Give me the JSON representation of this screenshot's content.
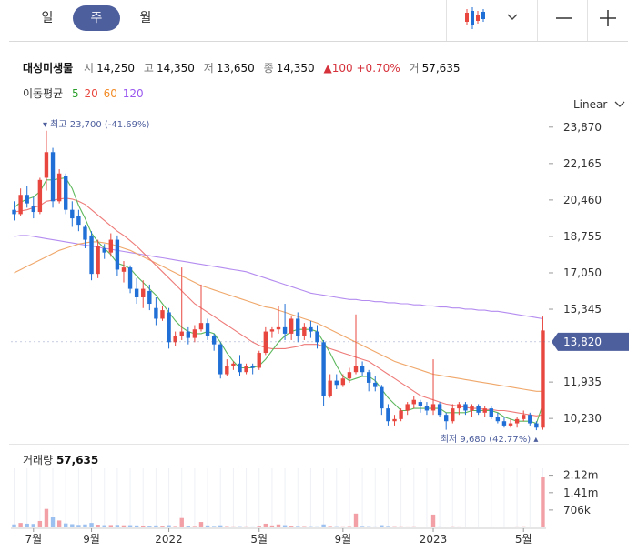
{
  "tabs": {
    "day": "일",
    "week": "주",
    "month": "월"
  },
  "icons": {
    "chart_type": "candlestick-icon",
    "dropdown": "chevron-down-icon",
    "zoom_out": "minus-icon",
    "zoom_in": "plus-icon"
  },
  "stock": {
    "name": "대성미생물",
    "open_label": "시",
    "open": "14,250",
    "high_label": "고",
    "high": "14,350",
    "low_label": "저",
    "low": "13,650",
    "close_label": "종",
    "close": "14,350",
    "change": "▲100",
    "change_pct": "+0.70%",
    "volume_label": "거",
    "volume": "57,635"
  },
  "moving_avg": {
    "label": "이동평균",
    "periods": [
      "5",
      "20",
      "60",
      "120"
    ],
    "colors": [
      "#2ca02c",
      "#e8473f",
      "#f28c28",
      "#9b59f0"
    ]
  },
  "scale_label": "Linear",
  "colors": {
    "up": "#e8473f",
    "down": "#1f6fd6",
    "accent": "#4e5f9e",
    "ma5": "#5cb85c",
    "ma20": "#ee7a78",
    "ma60": "#f0a76a",
    "ma120": "#b48cf0",
    "vol_up": "#f2a0a6",
    "vol_down": "#9cc0ef"
  },
  "chart_data": {
    "type": "candlestick",
    "y_ticks": [
      "23,870",
      "22,165",
      "20,460",
      "18,755",
      "17,050",
      "15,345",
      "11,935",
      "10,230"
    ],
    "y_range": [
      9300,
      24500
    ],
    "x_labels": [
      "7월",
      "9월",
      "2022",
      "5월",
      "9월",
      "2023",
      "5월"
    ],
    "current_price": "13,820",
    "high_marker": "최고 23,700 (-41.69%)",
    "low_marker": "최저 9,680 (42.77%)",
    "volume_label": "거래량",
    "volume_value": "57,635",
    "volume_ticks": [
      "2.12m",
      "1.41m",
      "706k"
    ],
    "volume_range": [
      0,
      2400000
    ],
    "candles": [
      [
        20000,
        20400,
        19500,
        19800
      ],
      [
        19800,
        21000,
        19700,
        20700
      ],
      [
        20700,
        21100,
        20100,
        20300
      ],
      [
        20200,
        20600,
        19600,
        19900
      ],
      [
        19900,
        21500,
        19800,
        21400
      ],
      [
        21500,
        23700,
        20900,
        22700
      ],
      [
        22700,
        22900,
        20100,
        20400
      ],
      [
        20400,
        21900,
        20300,
        21700
      ],
      [
        21600,
        21700,
        19800,
        20000
      ],
      [
        20000,
        20400,
        19200,
        19600
      ],
      [
        19700,
        20000,
        19000,
        19300
      ],
      [
        19200,
        19300,
        18200,
        18600
      ],
      [
        18800,
        19000,
        16700,
        17000
      ],
      [
        17000,
        18600,
        16800,
        18300
      ],
      [
        18200,
        18400,
        17700,
        18000
      ],
      [
        18000,
        18900,
        17800,
        18600
      ],
      [
        18600,
        18800,
        16900,
        17200
      ],
      [
        17100,
        17600,
        16600,
        17300
      ],
      [
        17300,
        17400,
        16100,
        16300
      ],
      [
        16300,
        16800,
        15600,
        15900
      ],
      [
        15900,
        16700,
        15400,
        16300
      ],
      [
        16200,
        16500,
        15300,
        15600
      ],
      [
        15400,
        15900,
        14600,
        14900
      ],
      [
        14900,
        15500,
        14800,
        15300
      ],
      [
        15200,
        15400,
        13500,
        13800
      ],
      [
        13800,
        14300,
        13600,
        14100
      ],
      [
        14100,
        17300,
        13900,
        14300
      ],
      [
        14300,
        14500,
        13700,
        14000
      ],
      [
        14000,
        14600,
        13800,
        14400
      ],
      [
        14400,
        16500,
        14300,
        14700
      ],
      [
        14700,
        14900,
        13900,
        14100
      ],
      [
        14100,
        14200,
        13400,
        13700
      ],
      [
        13700,
        13800,
        12100,
        12300
      ],
      [
        12300,
        13000,
        12200,
        12700
      ],
      [
        12700,
        12900,
        12500,
        12800
      ],
      [
        12800,
        13200,
        12200,
        12400
      ],
      [
        12400,
        12800,
        12300,
        12700
      ],
      [
        12700,
        12800,
        12300,
        12600
      ],
      [
        12600,
        13400,
        12500,
        13300
      ],
      [
        13300,
        14500,
        13200,
        14300
      ],
      [
        14300,
        14500,
        14000,
        14400
      ],
      [
        14400,
        15500,
        14200,
        14500
      ],
      [
        14500,
        15600,
        13900,
        14200
      ],
      [
        14200,
        15000,
        13900,
        14900
      ],
      [
        14900,
        15200,
        13800,
        14100
      ],
      [
        14100,
        14700,
        13900,
        14500
      ],
      [
        14500,
        14800,
        14000,
        14300
      ],
      [
        14300,
        14600,
        13500,
        13800
      ],
      [
        13800,
        13900,
        10800,
        11300
      ],
      [
        11300,
        12300,
        11200,
        12000
      ],
      [
        12000,
        12300,
        11600,
        11800
      ],
      [
        11800,
        12300,
        11700,
        12100
      ],
      [
        12100,
        12600,
        11900,
        12400
      ],
      [
        12400,
        15100,
        12300,
        12700
      ],
      [
        12700,
        12900,
        12200,
        12400
      ],
      [
        12400,
        12500,
        11500,
        11900
      ],
      [
        11900,
        12200,
        11500,
        11700
      ],
      [
        11700,
        11800,
        10400,
        10700
      ],
      [
        10700,
        10900,
        9900,
        10100
      ],
      [
        10100,
        10400,
        9900,
        10200
      ],
      [
        10200,
        10700,
        10100,
        10600
      ],
      [
        10600,
        11000,
        10400,
        10900
      ],
      [
        10900,
        11300,
        10700,
        11100
      ],
      [
        11000,
        11100,
        10500,
        10800
      ],
      [
        10800,
        11000,
        10400,
        10600
      ],
      [
        10600,
        13000,
        10400,
        10900
      ],
      [
        10900,
        11000,
        10300,
        10400
      ],
      [
        10400,
        10500,
        9700,
        10100
      ],
      [
        10100,
        10900,
        10000,
        10700
      ],
      [
        10700,
        11000,
        10400,
        10900
      ],
      [
        10900,
        11000,
        10400,
        10600
      ],
      [
        10600,
        10900,
        10300,
        10800
      ],
      [
        10800,
        10900,
        10400,
        10500
      ],
      [
        10500,
        10800,
        10300,
        10700
      ],
      [
        10700,
        10800,
        10200,
        10300
      ],
      [
        10300,
        10500,
        10000,
        10100
      ],
      [
        10100,
        10300,
        9800,
        9900
      ],
      [
        9900,
        10200,
        9800,
        10000
      ],
      [
        10000,
        10300,
        9800,
        10200
      ],
      [
        10200,
        10600,
        10100,
        10400
      ],
      [
        10400,
        10500,
        9900,
        10000
      ],
      [
        10000,
        10100,
        9680,
        9800
      ],
      [
        9800,
        15000,
        9700,
        14350
      ]
    ],
    "volumes": [
      120000,
      180000,
      150000,
      140000,
      260000,
      750000,
      420000,
      280000,
      160000,
      130000,
      100000,
      120000,
      180000,
      110000,
      90000,
      95000,
      100000,
      85000,
      90000,
      80000,
      75000,
      70000,
      80000,
      70000,
      90000,
      60000,
      380000,
      70000,
      60000,
      220000,
      80000,
      60000,
      85000,
      55000,
      45000,
      50000,
      45000,
      40000,
      70000,
      150000,
      80000,
      120000,
      90000,
      70000,
      60000,
      55000,
      50000,
      45000,
      120000,
      60000,
      50000,
      45000,
      55000,
      560000,
      60000,
      50000,
      40000,
      90000,
      60000,
      50000,
      45000,
      40000,
      45000,
      35000,
      30000,
      520000,
      40000,
      35000,
      45000,
      40000,
      30000,
      35000,
      30000,
      35000,
      30000,
      25000,
      30000,
      25000,
      40000,
      45000,
      30000,
      30000,
      2050000
    ],
    "ma5": [
      20100,
      20350,
      20500,
      20600,
      20850,
      21400,
      21400,
      21450,
      21500,
      21000,
      20200,
      19600,
      18900,
      18500,
      18200,
      17900,
      17500,
      17400,
      17250,
      16900,
      16600,
      16300,
      16000,
      15600,
      15200,
      14800,
      14500,
      14300,
      14200,
      14200,
      14300,
      14200,
      13800,
      13300,
      12900,
      12600,
      12600,
      12600,
      12700,
      13000,
      13400,
      13800,
      14100,
      14300,
      14400,
      14400,
      14400,
      14300,
      13800,
      13300,
      12700,
      12200,
      12000,
      12100,
      12200,
      12200,
      12000,
      11600,
      11200,
      10900,
      10600,
      10600,
      10700,
      10700,
      10700,
      10700,
      10700,
      10500,
      10500,
      10500,
      10500,
      10600,
      10600,
      10600,
      10600,
      10500,
      10300,
      10200,
      10100,
      10100,
      10100,
      10000,
      10900
    ],
    "ma20": [
      19900,
      19950,
      20000,
      20100,
      20200,
      20400,
      20450,
      20500,
      20550,
      20500,
      20400,
      20250,
      20000,
      19750,
      19500,
      19250,
      19000,
      18800,
      18550,
      18300,
      18000,
      17700,
      17400,
      17100,
      16800,
      16500,
      16200,
      15900,
      15600,
      15400,
      15200,
      15000,
      14800,
      14600,
      14400,
      14200,
      14000,
      13800,
      13650,
      13550,
      13500,
      13500,
      13500,
      13550,
      13600,
      13700,
      13700,
      13700,
      13600,
      13500,
      13400,
      13300,
      13200,
      13100,
      13000,
      12900,
      12700,
      12500,
      12300,
      12100,
      11900,
      11700,
      11500,
      11300,
      11200,
      11100,
      11000,
      10900,
      10850,
      10800,
      10750,
      10700,
      10700,
      10650,
      10650,
      10600,
      10600,
      10550,
      10500,
      10450,
      10400,
      10350,
      10400
    ],
    "ma60": [
      17050,
      17200,
      17350,
      17500,
      17650,
      17800,
      17950,
      18100,
      18200,
      18300,
      18400,
      18450,
      18500,
      18500,
      18450,
      18400,
      18300,
      18200,
      18100,
      17950,
      17800,
      17650,
      17500,
      17350,
      17200,
      17050,
      16900,
      16750,
      16600,
      16450,
      16350,
      16250,
      16150,
      16050,
      15950,
      15850,
      15750,
      15650,
      15550,
      15450,
      15400,
      15300,
      15200,
      15100,
      15000,
      14900,
      14800,
      14700,
      14550,
      14400,
      14250,
      14100,
      13950,
      13800,
      13650,
      13500,
      13350,
      13200,
      13050,
      12900,
      12800,
      12700,
      12600,
      12500,
      12400,
      12300,
      12250,
      12200,
      12150,
      12100,
      12050,
      12000,
      11950,
      11900,
      11850,
      11800,
      11750,
      11700,
      11650,
      11600,
      11550,
      11500,
      11500
    ],
    "ma120": [
      18750,
      18800,
      18800,
      18750,
      18700,
      18650,
      18600,
      18550,
      18500,
      18450,
      18400,
      18350,
      18300,
      18250,
      18200,
      18150,
      18100,
      18050,
      18000,
      17950,
      17900,
      17850,
      17800,
      17750,
      17700,
      17650,
      17600,
      17550,
      17500,
      17450,
      17400,
      17350,
      17300,
      17250,
      17200,
      17150,
      17100,
      17000,
      16900,
      16800,
      16700,
      16600,
      16500,
      16400,
      16300,
      16200,
      16100,
      16050,
      16000,
      15950,
      15900,
      15850,
      15800,
      15800,
      15750,
      15750,
      15700,
      15700,
      15650,
      15650,
      15600,
      15600,
      15550,
      15550,
      15500,
      15500,
      15450,
      15450,
      15400,
      15400,
      15350,
      15350,
      15300,
      15300,
      15250,
      15250,
      15200,
      15150,
      15100,
      15050,
      15000,
      14950,
      14900
    ]
  }
}
